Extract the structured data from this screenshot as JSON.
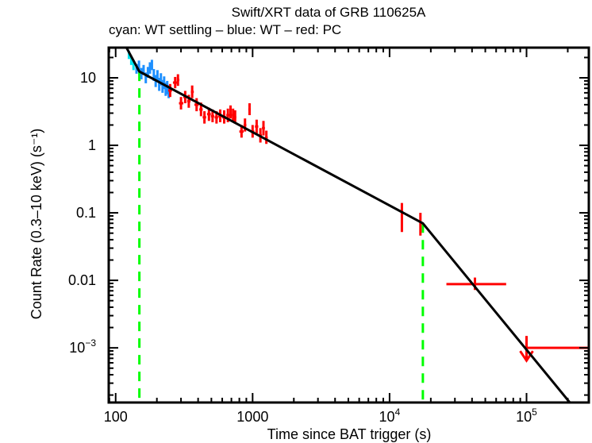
{
  "chart_data": {
    "type": "scatter",
    "title": "Swift/XRT data of GRB 110625A",
    "subtitle": "cyan: WT settling – blue: WT – red: PC",
    "xlabel": "Time since BAT trigger (s)",
    "ylabel": "Count Rate (0.3–10 keV) (s⁻¹)",
    "xscale": "log",
    "yscale": "log",
    "xlim": [
      89,
      285000
    ],
    "ylim": [
      0.000155,
      28
    ],
    "grid": false,
    "x_ticks": [
      {
        "value": 100,
        "label": "100"
      },
      {
        "value": 1000,
        "label": "1000"
      },
      {
        "value": 10000,
        "label": "10",
        "exp": "4"
      },
      {
        "value": 100000,
        "label": "10",
        "exp": "5"
      }
    ],
    "y_ticks": [
      {
        "value": 10,
        "label": "10"
      },
      {
        "value": 1,
        "label": "1"
      },
      {
        "value": 0.1,
        "label": "0.1"
      },
      {
        "value": 0.01,
        "label": "0.01"
      },
      {
        "value": 0.001,
        "label": "10",
        "exp": "−3"
      }
    ],
    "colors": {
      "wt_settling": "#00e5ee",
      "wt": "#1e90ff",
      "pc": "#ff0000",
      "model": "#000000",
      "breaks": "#00ff00"
    },
    "series": [
      {
        "name": "WT settling",
        "color_key": "wt_settling",
        "points": [
          {
            "x": 125,
            "xerr": [
              123,
              127
            ],
            "y": 22,
            "yerr": [
              19,
              25
            ]
          },
          {
            "x": 130,
            "xerr": [
              128,
              132
            ],
            "y": 18,
            "yerr": [
              15.5,
              21
            ]
          },
          {
            "x": 135,
            "xerr": [
              133,
              137
            ],
            "y": 15,
            "yerr": [
              13,
              17.5
            ]
          }
        ]
      },
      {
        "name": "WT",
        "color_key": "wt",
        "points": [
          {
            "x": 142,
            "xerr": [
              140,
              144
            ],
            "y": 13.5,
            "yerr": [
              11.5,
              16
            ]
          },
          {
            "x": 148,
            "xerr": [
              146,
              150
            ],
            "y": 15,
            "yerr": [
              12.5,
              18
            ]
          },
          {
            "x": 154,
            "xerr": [
              152,
              156
            ],
            "y": 11.5,
            "yerr": [
              9.5,
              14
            ]
          },
          {
            "x": 160,
            "xerr": [
              158,
              162
            ],
            "y": 13,
            "yerr": [
              11,
              15.5
            ]
          },
          {
            "x": 166,
            "xerr": [
              164,
              168
            ],
            "y": 10,
            "yerr": [
              8.3,
              12
            ]
          },
          {
            "x": 172,
            "xerr": [
              170,
              174
            ],
            "y": 12,
            "yerr": [
              10,
              14.5
            ]
          },
          {
            "x": 178,
            "xerr": [
              176,
              180
            ],
            "y": 14,
            "yerr": [
              11.5,
              17
            ]
          },
          {
            "x": 184,
            "xerr": [
              182,
              186
            ],
            "y": 15.5,
            "yerr": [
              13,
              18.5
            ]
          },
          {
            "x": 190,
            "xerr": [
              188,
              192
            ],
            "y": 11,
            "yerr": [
              9,
              13.5
            ]
          },
          {
            "x": 196,
            "xerr": [
              194,
              198
            ],
            "y": 9,
            "yerr": [
              7.3,
              11
            ]
          },
          {
            "x": 202,
            "xerr": [
              200,
              204
            ],
            "y": 10.5,
            "yerr": [
              8.5,
              13
            ]
          },
          {
            "x": 208,
            "xerr": [
              206,
              210
            ],
            "y": 8,
            "yerr": [
              6.4,
              10
            ]
          },
          {
            "x": 214,
            "xerr": [
              212,
              216
            ],
            "y": 9.5,
            "yerr": [
              7.7,
              11.7
            ]
          },
          {
            "x": 220,
            "xerr": [
              218,
              222
            ],
            "y": 7.5,
            "yerr": [
              6,
              9.3
            ]
          },
          {
            "x": 226,
            "xerr": [
              224,
              228
            ],
            "y": 8.5,
            "yerr": [
              6.8,
              10.5
            ]
          },
          {
            "x": 232,
            "xerr": [
              230,
              234
            ],
            "y": 6.8,
            "yerr": [
              5.4,
              8.5
            ]
          },
          {
            "x": 238,
            "xerr": [
              236,
              240
            ],
            "y": 7.2,
            "yerr": [
              5.7,
              9
            ]
          },
          {
            "x": 244,
            "xerr": [
              242,
              246
            ],
            "y": 6.2,
            "yerr": [
              5,
              7.8
            ]
          }
        ]
      },
      {
        "name": "PC",
        "color_key": "pc",
        "points": [
          {
            "x": 250,
            "xerr": [
              242,
              258
            ],
            "y": 6.5,
            "yerr": [
              5.2,
              8.1
            ]
          },
          {
            "x": 272,
            "xerr": [
              262,
              282
            ],
            "y": 8.5,
            "yerr": [
              7,
              10.3
            ]
          },
          {
            "x": 285,
            "xerr": [
              280,
              292
            ],
            "y": 9.3,
            "yerr": [
              7.6,
              11.3
            ]
          },
          {
            "x": 300,
            "xerr": [
              290,
              312
            ],
            "y": 4.2,
            "yerr": [
              3.4,
              5.2
            ]
          },
          {
            "x": 322,
            "xerr": [
              312,
              332
            ],
            "y": 5.2,
            "yerr": [
              4.2,
              6.4
            ]
          },
          {
            "x": 342,
            "xerr": [
              333,
              352
            ],
            "y": 4.5,
            "yerr": [
              3.6,
              5.6
            ]
          },
          {
            "x": 362,
            "xerr": [
              354,
              372
            ],
            "y": 6.2,
            "yerr": [
              5,
              7.7
            ]
          },
          {
            "x": 390,
            "xerr": [
              376,
              404
            ],
            "y": 4.0,
            "yerr": [
              3.2,
              5
            ]
          },
          {
            "x": 420,
            "xerr": [
              408,
              432
            ],
            "y": 3.4,
            "yerr": [
              2.7,
              4.3
            ]
          },
          {
            "x": 445,
            "xerr": [
              432,
              458
            ],
            "y": 2.6,
            "yerr": [
              2.1,
              3.2
            ]
          },
          {
            "x": 480,
            "xerr": [
              465,
              495
            ],
            "y": 2.9,
            "yerr": [
              2.3,
              3.6
            ]
          },
          {
            "x": 510,
            "xerr": [
              496,
              524
            ],
            "y": 2.7,
            "yerr": [
              2.2,
              3.4
            ]
          },
          {
            "x": 545,
            "xerr": [
              528,
              560
            ],
            "y": 2.6,
            "yerr": [
              2.1,
              3.2
            ]
          },
          {
            "x": 580,
            "xerr": [
              562,
              598
            ],
            "y": 2.7,
            "yerr": [
              2.2,
              3.4
            ]
          },
          {
            "x": 620,
            "xerr": [
              600,
              640
            ],
            "y": 2.6,
            "yerr": [
              2.1,
              3.3
            ]
          },
          {
            "x": 660,
            "xerr": [
              642,
              678
            ],
            "y": 2.8,
            "yerr": [
              2.2,
              3.5
            ]
          },
          {
            "x": 690,
            "xerr": [
              678,
              702
            ],
            "y": 3.1,
            "yerr": [
              2.5,
              3.9
            ]
          },
          {
            "x": 720,
            "xerr": [
              705,
              735
            ],
            "y": 2.8,
            "yerr": [
              2.2,
              3.5
            ]
          },
          {
            "x": 745,
            "xerr": [
              735,
              760
            ],
            "y": 2.6,
            "yerr": [
              2.1,
              3.3
            ]
          },
          {
            "x": 830,
            "xerr": [
              800,
              860
            ],
            "y": 1.6,
            "yerr": [
              1.3,
              2
            ]
          },
          {
            "x": 880,
            "xerr": [
              860,
              900
            ],
            "y": 2.0,
            "yerr": [
              1.6,
              2.5
            ]
          },
          {
            "x": 950,
            "xerr": [
              930,
              970
            ],
            "y": 3.4,
            "yerr": [
              2.8,
              4.2
            ]
          },
          {
            "x": 1000,
            "xerr": [
              970,
              1030
            ],
            "y": 1.6,
            "yerr": [
              1.3,
              2
            ]
          },
          {
            "x": 1070,
            "xerr": [
              1040,
              1100
            ],
            "y": 1.9,
            "yerr": [
              1.5,
              2.4
            ]
          },
          {
            "x": 1140,
            "xerr": [
              1110,
              1170
            ],
            "y": 1.4,
            "yerr": [
              1.1,
              1.8
            ]
          },
          {
            "x": 1200,
            "xerr": [
              1170,
              1230
            ],
            "y": 1.8,
            "yerr": [
              1.4,
              2.3
            ]
          },
          {
            "x": 1260,
            "xerr": [
              1230,
              1290
            ],
            "y": 1.3,
            "yerr": [
              1.05,
              1.65
            ]
          },
          {
            "x": 12300,
            "xerr": [
              12100,
              12500
            ],
            "y": 0.085,
            "yerr": [
              0.052,
              0.14
            ]
          },
          {
            "x": 16800,
            "xerr": [
              16600,
              17000
            ],
            "y": 0.07,
            "yerr": [
              0.046,
              0.1
            ]
          },
          {
            "x": 42000,
            "xerr": [
              26000,
              71000
            ],
            "y": 0.0088,
            "yerr": [
              0.0072,
              0.011
            ]
          }
        ]
      },
      {
        "name": "PC upper limit",
        "color_key": "pc",
        "upper_limit": true,
        "points": [
          {
            "x": 100000,
            "xerr": [
              100000,
              280000
            ],
            "y": 0.001
          }
        ]
      }
    ],
    "model": {
      "name": "Broken power-law fit",
      "color_key": "model",
      "points": [
        {
          "x": 120,
          "y": 28
        },
        {
          "x": 149,
          "y": 12.4
        },
        {
          "x": 17500,
          "y": 0.07
        },
        {
          "x": 207000,
          "y": 0.000155
        }
      ]
    },
    "breaks": [
      {
        "x": 149,
        "color_key": "breaks"
      },
      {
        "x": 17500,
        "color_key": "breaks"
      }
    ]
  }
}
